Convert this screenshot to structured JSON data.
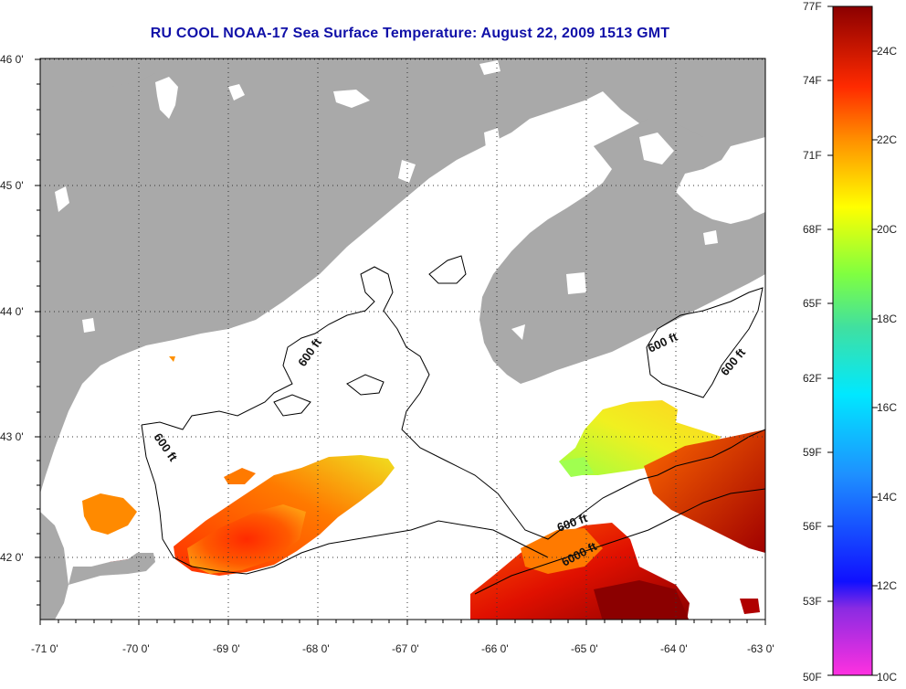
{
  "title": "RU COOL  NOAA-17  Sea Surface Temperature:  August 22, 2009 1513 GMT",
  "map": {
    "lat_labels": [
      "46 0'",
      "45 0'",
      "44 0'",
      "43 0'",
      "42 0'"
    ],
    "lon_labels": [
      "-71 0'",
      "-70 0'",
      "-69 0'",
      "-68 0'",
      "-67 0'",
      "-66 0'",
      "-65 0'",
      "-64 0'",
      "-63 0'"
    ],
    "land_color": "#a9a9a9",
    "ocean_no_data_color": "#ffffff",
    "contour_labels": [
      "600 ft",
      "600 ft",
      "600 ft",
      "600 ft",
      "600 ft",
      "6000 ft"
    ]
  },
  "colorbar": {
    "fahrenheit_labels": [
      "77F",
      "74F",
      "71F",
      "68F",
      "65F",
      "62F",
      "59F",
      "56F",
      "53F",
      "50F"
    ],
    "celsius_labels": [
      "24C",
      "22C",
      "20C",
      "18C",
      "16C",
      "14C",
      "12C",
      "10C"
    ],
    "range_f": [
      50,
      77
    ],
    "range_c": [
      10,
      25
    ]
  }
}
